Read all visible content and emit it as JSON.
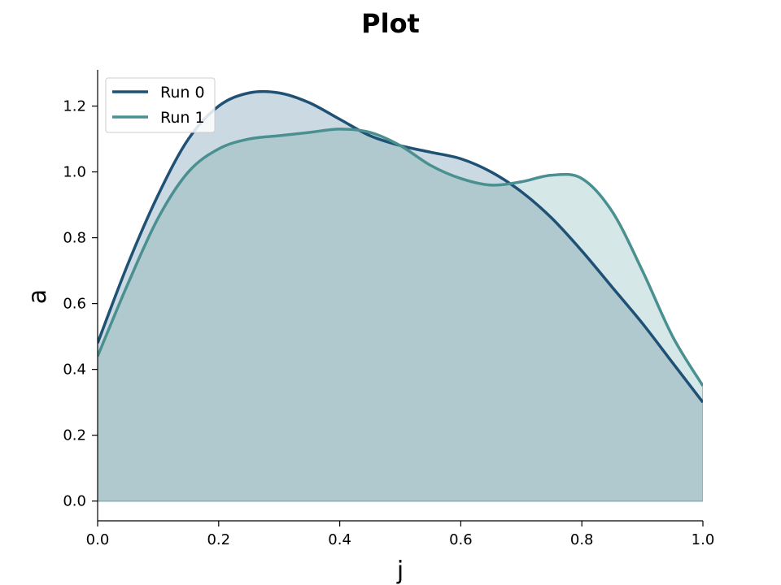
{
  "chart_data": {
    "type": "area",
    "title": "Plot",
    "xlabel": "j",
    "ylabel": "a",
    "xlim": [
      0.0,
      1.0
    ],
    "ylim": [
      -0.06,
      1.31
    ],
    "xticks": [
      "0.0",
      "0.2",
      "0.4",
      "0.6",
      "0.8",
      "1.0"
    ],
    "yticks": [
      "0.0",
      "0.2",
      "0.4",
      "0.6",
      "0.8",
      "1.0",
      "1.2"
    ],
    "grid": false,
    "legend_position": "top-left",
    "x": [
      0.0,
      0.05,
      0.1,
      0.15,
      0.2,
      0.25,
      0.3,
      0.35,
      0.4,
      0.45,
      0.5,
      0.55,
      0.6,
      0.65,
      0.7,
      0.75,
      0.8,
      0.85,
      0.9,
      0.95,
      1.0
    ],
    "series": [
      {
        "name": "Run 0",
        "color": "#1f5175",
        "fill_color": "#cbd9e2",
        "values": [
          0.48,
          0.72,
          0.93,
          1.1,
          1.2,
          1.24,
          1.24,
          1.21,
          1.16,
          1.11,
          1.08,
          1.06,
          1.04,
          1.0,
          0.94,
          0.86,
          0.76,
          0.65,
          0.54,
          0.42,
          0.3
        ]
      },
      {
        "name": "Run 1",
        "color": "#4a9090",
        "fill_color": "#d6e7e8",
        "values": [
          0.44,
          0.66,
          0.86,
          1.0,
          1.07,
          1.1,
          1.11,
          1.12,
          1.13,
          1.12,
          1.08,
          1.02,
          0.98,
          0.96,
          0.97,
          0.99,
          0.98,
          0.88,
          0.7,
          0.5,
          0.35
        ]
      }
    ],
    "overlap_fill_color": "#b0c9cf"
  }
}
